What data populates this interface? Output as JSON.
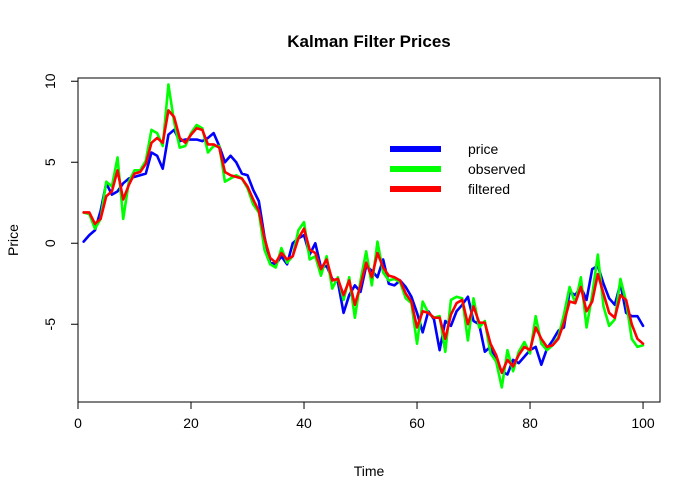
{
  "chart_data": {
    "type": "line",
    "title": "Kalman Filter Prices",
    "xlabel": "Time",
    "ylabel": "Price",
    "xlim": [
      0,
      103
    ],
    "ylim": [
      -9.8,
      10.2
    ],
    "x_ticks": [
      0,
      20,
      40,
      60,
      80,
      100
    ],
    "y_ticks": [
      -5,
      0,
      5,
      10
    ],
    "grid": false,
    "legend_position": "top-right",
    "series": [
      {
        "name": "price",
        "color": "#0000ff",
        "values": [
          0.1,
          0.5,
          0.8,
          2.0,
          3.7,
          3.0,
          3.2,
          3.7,
          4.0,
          4.1,
          4.2,
          4.3,
          5.6,
          5.4,
          4.6,
          6.7,
          7.0,
          6.3,
          6.4,
          6.4,
          6.4,
          6.3,
          6.5,
          6.8,
          6.0,
          5.0,
          5.4,
          5.0,
          4.3,
          4.2,
          3.3,
          2.6,
          0.4,
          -1.2,
          -1.3,
          -0.8,
          -1.3,
          0.0,
          0.3,
          0.5,
          -0.7,
          0.0,
          -1.5,
          -1.4,
          -2.2,
          -2.4,
          -4.3,
          -3.2,
          -2.6,
          -3.0,
          -1.4,
          -1.7,
          -2.1,
          -1.0,
          -2.5,
          -2.6,
          -2.3,
          -2.7,
          -3.3,
          -4.3,
          -5.5,
          -4.2,
          -4.7,
          -6.6,
          -4.8,
          -5.1,
          -4.2,
          -3.8,
          -3.3,
          -4.8,
          -5.0,
          -6.7,
          -6.4,
          -7.3,
          -7.9,
          -8.1,
          -7.2,
          -7.4,
          -7.0,
          -6.6,
          -6.4,
          -7.5,
          -6.5,
          -6.0,
          -5.4,
          -5.2,
          -3.0,
          -3.2,
          -2.7,
          -3.5,
          -1.6,
          -1.4,
          -2.5,
          -3.4,
          -3.8,
          -2.5,
          -4.3,
          -4.5,
          -4.5,
          -5.1
        ]
      },
      {
        "name": "observed",
        "color": "#00ff00",
        "values": [
          1.9,
          1.8,
          0.9,
          1.5,
          3.8,
          3.5,
          5.3,
          1.5,
          3.8,
          4.5,
          4.5,
          5.1,
          7.0,
          6.8,
          6.0,
          9.8,
          7.5,
          5.9,
          6.0,
          6.8,
          7.3,
          7.1,
          5.6,
          6.0,
          6.0,
          3.8,
          4.0,
          4.2,
          4.0,
          3.4,
          2.4,
          1.9,
          -0.4,
          -1.3,
          -1.5,
          -0.3,
          -1.2,
          -0.8,
          0.8,
          1.3,
          -1.0,
          -0.8,
          -2.0,
          -0.8,
          -2.8,
          -2.1,
          -3.5,
          -2.1,
          -4.6,
          -2.3,
          -0.5,
          -2.6,
          0.1,
          -1.8,
          -2.3,
          -2.2,
          -2.4,
          -3.4,
          -3.7,
          -6.2,
          -3.6,
          -4.3,
          -4.6,
          -4.5,
          -6.7,
          -3.5,
          -3.3,
          -3.4,
          -6.0,
          -3.4,
          -5.2,
          -4.8,
          -6.8,
          -7.3,
          -8.9,
          -6.6,
          -7.9,
          -6.7,
          -6.1,
          -6.8,
          -4.5,
          -6.2,
          -6.6,
          -6.3,
          -5.8,
          -4.4,
          -2.7,
          -3.7,
          -2.1,
          -5.2,
          -3.2,
          -0.7,
          -3.9,
          -5.1,
          -4.7,
          -2.2,
          -3.6,
          -5.9,
          -6.4,
          -6.3
        ]
      },
      {
        "name": "filtered",
        "color": "#ff0000",
        "values": [
          1.9,
          1.9,
          1.2,
          1.5,
          2.9,
          3.2,
          4.5,
          2.7,
          3.6,
          4.3,
          4.4,
          4.9,
          6.2,
          6.5,
          6.2,
          8.2,
          7.8,
          6.5,
          6.2,
          6.7,
          7.1,
          7.0,
          6.1,
          6.1,
          5.9,
          4.4,
          4.2,
          4.1,
          4.0,
          3.5,
          2.7,
          2.0,
          0.3,
          -0.9,
          -1.2,
          -0.6,
          -1.0,
          -0.8,
          0.3,
          0.9,
          -0.4,
          -0.6,
          -1.6,
          -1.0,
          -2.3,
          -2.2,
          -3.2,
          -2.3,
          -3.8,
          -2.6,
          -1.2,
          -2.1,
          -0.6,
          -1.5,
          -2.0,
          -2.1,
          -2.3,
          -3.1,
          -3.6,
          -5.2,
          -4.2,
          -4.3,
          -4.6,
          -4.6,
          -5.9,
          -4.4,
          -3.7,
          -3.5,
          -5.0,
          -3.9,
          -4.9,
          -4.9,
          -6.2,
          -6.9,
          -8.0,
          -7.2,
          -7.6,
          -6.9,
          -6.4,
          -6.6,
          -5.2,
          -5.9,
          -6.4,
          -6.3,
          -5.9,
          -4.9,
          -3.6,
          -3.7,
          -2.7,
          -4.2,
          -3.6,
          -1.9,
          -3.1,
          -4.3,
          -4.6,
          -3.2,
          -3.5,
          -5.0,
          -5.9,
          -6.2
        ]
      }
    ]
  }
}
